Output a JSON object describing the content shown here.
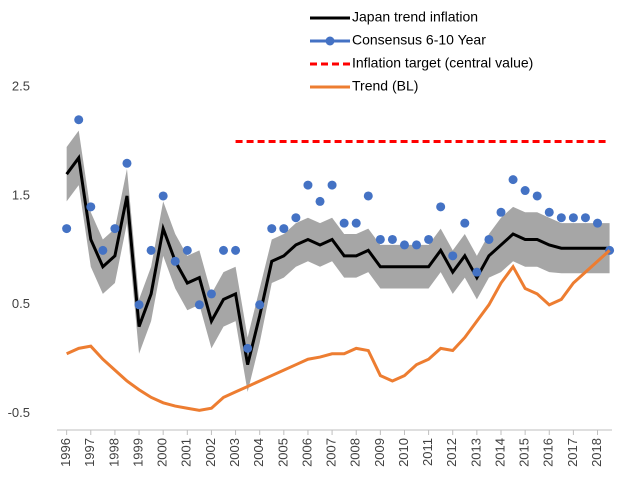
{
  "chart_data": {
    "type": "line",
    "x": [
      1996,
      1996.5,
      1997,
      1997.5,
      1998,
      1998.5,
      1999,
      1999.5,
      2000,
      2000.5,
      2001,
      2001.5,
      2002,
      2002.5,
      2003,
      2003.5,
      2004,
      2004.5,
      2005,
      2005.5,
      2006,
      2006.5,
      2007,
      2007.5,
      2008,
      2008.5,
      2009,
      2009.5,
      2010,
      2010.5,
      2011,
      2011.5,
      2012,
      2012.5,
      2013,
      2013.5,
      2014,
      2014.5,
      2015,
      2015.5,
      2016,
      2016.5,
      2017,
      2017.5,
      2018,
      2018.5
    ],
    "band": {
      "color": "#a6a6a6",
      "upper": [
        1.95,
        2.1,
        1.35,
        1.1,
        1.2,
        1.75,
        0.55,
        0.85,
        1.45,
        1.15,
        0.95,
        1.0,
        0.6,
        0.8,
        0.85,
        0.2,
        0.65,
        1.1,
        1.15,
        1.25,
        1.3,
        1.25,
        1.3,
        1.15,
        1.15,
        1.2,
        1.05,
        1.05,
        1.05,
        1.05,
        1.05,
        1.2,
        1.0,
        1.15,
        0.95,
        1.15,
        1.3,
        1.4,
        1.35,
        1.35,
        1.3,
        1.25,
        1.25,
        1.25,
        1.25,
        1.25
      ],
      "lower": [
        1.45,
        1.6,
        0.85,
        0.6,
        0.7,
        1.25,
        0.05,
        0.35,
        0.95,
        0.65,
        0.45,
        0.5,
        0.1,
        0.3,
        0.35,
        -0.3,
        0.15,
        0.7,
        0.75,
        0.85,
        0.9,
        0.85,
        0.9,
        0.75,
        0.75,
        0.8,
        0.65,
        0.65,
        0.65,
        0.65,
        0.65,
        0.8,
        0.6,
        0.75,
        0.55,
        0.75,
        0.8,
        0.9,
        0.85,
        0.85,
        0.8,
        0.79,
        0.79,
        0.79,
        0.79,
        0.79
      ]
    },
    "series": [
      {
        "name": "Japan trend inflation",
        "color": "#000000",
        "style": "line",
        "values": [
          1.7,
          1.85,
          1.1,
          0.85,
          0.95,
          1.5,
          0.3,
          0.6,
          1.2,
          0.9,
          0.7,
          0.75,
          0.35,
          0.55,
          0.6,
          -0.05,
          0.4,
          0.9,
          0.95,
          1.05,
          1.1,
          1.05,
          1.1,
          0.95,
          0.95,
          1.0,
          0.85,
          0.85,
          0.85,
          0.85,
          0.85,
          1.0,
          0.8,
          0.95,
          0.75,
          0.95,
          1.05,
          1.15,
          1.1,
          1.1,
          1.05,
          1.02,
          1.02,
          1.02,
          1.02,
          1.02
        ]
      },
      {
        "name": "Consensus 6-10 Year",
        "color": "#4472c4",
        "style": "markers",
        "values": [
          1.2,
          2.2,
          1.4,
          1.0,
          1.2,
          1.8,
          0.5,
          1.0,
          1.5,
          0.9,
          1.0,
          0.5,
          0.6,
          1.0,
          1.0,
          0.1,
          0.5,
          1.2,
          1.2,
          1.3,
          1.6,
          1.45,
          1.6,
          1.25,
          1.25,
          1.5,
          1.1,
          1.1,
          1.05,
          1.05,
          1.1,
          1.4,
          0.95,
          1.25,
          0.8,
          1.1,
          1.35,
          1.65,
          1.55,
          1.5,
          1.35,
          1.3,
          1.3,
          1.3,
          1.25,
          1.0
        ]
      },
      {
        "name": "Inflation target (central value)",
        "color": "#ff0000",
        "style": "dashed",
        "values": [
          null,
          null,
          null,
          null,
          null,
          null,
          null,
          null,
          null,
          null,
          null,
          null,
          null,
          null,
          2.0,
          2.0,
          2.0,
          2.0,
          2.0,
          2.0,
          2.0,
          2.0,
          2.0,
          2.0,
          2.0,
          2.0,
          2.0,
          2.0,
          2.0,
          2.0,
          2.0,
          2.0,
          2.0,
          2.0,
          2.0,
          2.0,
          2.0,
          2.0,
          2.0,
          2.0,
          2.0,
          2.0,
          2.0,
          2.0,
          2.0,
          2.0
        ]
      },
      {
        "name": "Trend (BL)",
        "color": "#ed7d31",
        "style": "line",
        "values": [
          0.05,
          0.1,
          0.12,
          0.0,
          -0.1,
          -0.2,
          -0.28,
          -0.35,
          -0.4,
          -0.43,
          -0.45,
          -0.47,
          -0.45,
          -0.35,
          -0.3,
          -0.25,
          -0.2,
          -0.15,
          -0.1,
          -0.05,
          0.0,
          0.02,
          0.05,
          0.05,
          0.1,
          0.08,
          -0.15,
          -0.2,
          -0.15,
          -0.05,
          0.0,
          0.1,
          0.08,
          0.2,
          0.35,
          0.5,
          0.7,
          0.85,
          0.65,
          0.6,
          0.5,
          0.55,
          0.7,
          0.8,
          0.9,
          1.0
        ]
      }
    ],
    "xlim": [
      1995.6,
      2018.6
    ],
    "xticks": [
      1996,
      1997,
      1998,
      1999,
      2000,
      2001,
      2002,
      2003,
      2004,
      2005,
      2006,
      2007,
      2008,
      2009,
      2010,
      2011,
      2012,
      2013,
      2014,
      2015,
      2016,
      2017,
      2018
    ],
    "ylim": [
      -0.65,
      3.3
    ],
    "yticks": [
      -0.5,
      0.5,
      1.5,
      2.5
    ],
    "legend": "upper right"
  }
}
